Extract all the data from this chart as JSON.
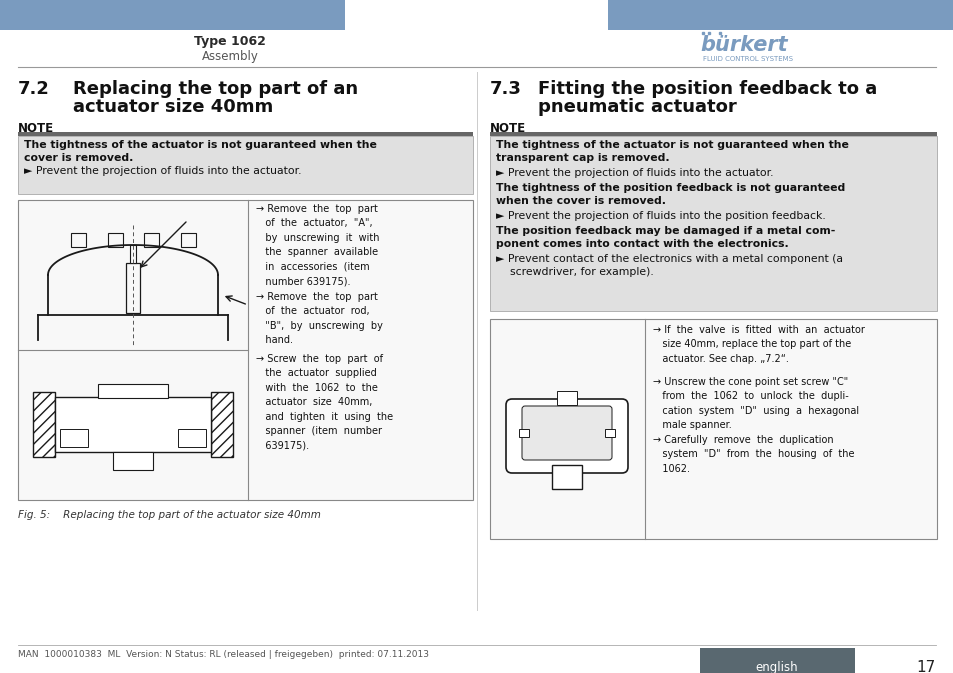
{
  "page_bg": "#ffffff",
  "header_bar_color": "#7a9bbf",
  "header_text_left": "Type 1062",
  "header_subtext_left": "Assembly",
  "divider_color": "#888888",
  "section_left_num": "7.2",
  "section_left_title1": "Replacing the top part of an",
  "section_left_title2": "actuator size 40mm",
  "section_right_num": "7.3",
  "section_right_title1": "Fitting the position feedback to a",
  "section_right_title2": "pneumatic actuator",
  "note_label": "NOTE",
  "note_bg": "#e0e0e0",
  "note_border": "#888888",
  "note_left_bold1": "The tightness of the actuator is not guaranteed when the",
  "note_left_bold2": "cover is removed.",
  "note_left_normal": "► Prevent the projection of fluids into the actuator.",
  "note_right_bold1": "The tightness of the actuator is not guaranteed when the",
  "note_right_bold2": "transparent cap is removed.",
  "note_right_normal1": "► Prevent the projection of fluids into the actuator.",
  "note_right_bold3": "The tightness of the position feedback is not guaranteed",
  "note_right_bold4": "when the cover is removed.",
  "note_right_normal2": "► Prevent the projection of fluids into the position feedback.",
  "note_right_bold5": "The position feedback may be damaged if a metal com-",
  "note_right_bold6": "ponent comes into contact with the electronics.",
  "note_right_normal3": "► Prevent contact of the electronics with a metal component (a",
  "note_right_normal3b": "    screwdriver, for example).",
  "left_instr1": "→ Remove  the  top  part\n   of  the  actuator,  \"A\",\n   by  unscrewing  it  with\n   the  spanner  available\n   in  accessories  (item\n   number 639175).",
  "left_instr2": "→ Remove  the  top  part\n   of  the  actuator  rod,\n   \"B\",  by  unscrewing  by\n   hand.",
  "left_instr3": "→ Screw  the  top  part  of\n   the  actuator  supplied\n   with  the  1062  to  the\n   actuator  size  40mm,\n   and  tighten  it  using  the\n   spanner  (item  number\n   639175).",
  "right_instr1": "→ If  the  valve  is  fitted  with  an  actuator\n   size 40mm, replace the top part of the\n   actuator. See chap. „7.2“.",
  "right_instr2": "→ Unscrew the cone point set screw \"C\"\n   from  the  1062  to  unlock  the  dupli-\n   cation  system  \"D\"  using  a  hexagonal\n   male spanner.",
  "right_instr3": "→ Carefully  remove  the  duplication\n   system  \"D\"  from  the  housing  of  the\n   1062.",
  "fig_caption": "Fig. 5:    Replacing the top part of the actuator size 40mm",
  "footer_text": "MAN  1000010383  ML  Version: N Status: RL (released | freigegeben)  printed: 07.11.2013",
  "footer_lang": "english",
  "footer_page": "17",
  "footer_lang_bg": "#596870",
  "burkert_color": "#7a9bbf"
}
